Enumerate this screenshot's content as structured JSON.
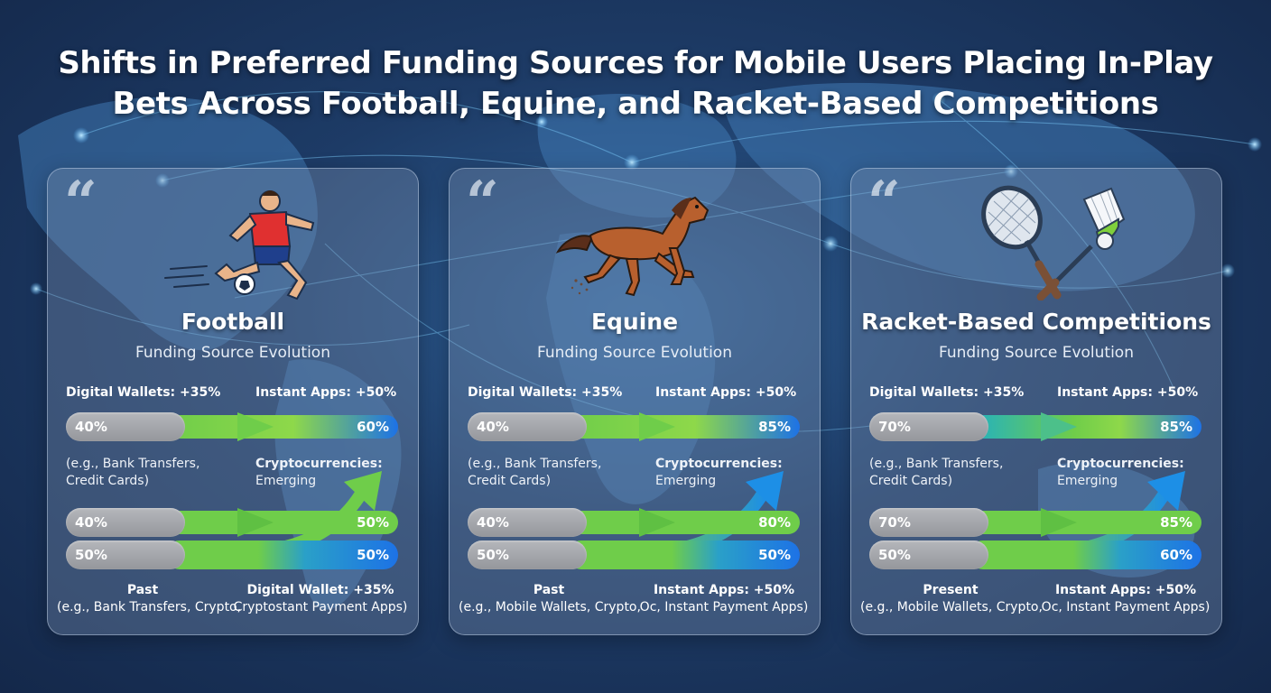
{
  "title_line1": "Shifts in Preferred Funding Sources for Mobile Users Placing In-Play",
  "title_line2": "Bets Across Football, Equine, and Racket-Based Competitions",
  "colors": {
    "grey": "#a4a6aa",
    "green": "#6fcd4a",
    "blue": "#1d72e6",
    "teal": "#21b0c4"
  },
  "cards": [
    {
      "icon": "soccer-player-icon",
      "title": "Football",
      "subtitle": "Funding Source Evolution",
      "label_left": "Digital Wallets: +35%",
      "label_right": "Instant Apps: +50%",
      "bar1": {
        "left": "40%",
        "right": "60%"
      },
      "note_left_1": "(e.g., Bank Transfers,",
      "note_left_2": "Credit Cards)",
      "note_right_1": "Cryptocurrencies:",
      "note_right_2": "Emerging",
      "bar2": {
        "left": "40%",
        "right": "50%"
      },
      "bar3": {
        "left": "50%",
        "right": "50%"
      },
      "foot_left_1": "Past",
      "foot_left_2": "(e.g., Bank Transfers, Crypto,",
      "foot_right_1": "Digital Wallet: +35%",
      "foot_right_2": "Cryptostant Payment Apps)"
    },
    {
      "icon": "horse-icon",
      "title": "Equine",
      "subtitle": "Funding Source Evolution",
      "label_left": "Digital Wallets: +35%",
      "label_right": "Instant Apps: +50%",
      "bar1": {
        "left": "40%",
        "right": "85%"
      },
      "note_left_1": "(e.g., Bank Transfers,",
      "note_left_2": "Credit Cards)",
      "note_right_1": "Cryptocurrencies:",
      "note_right_2": "Emerging",
      "bar2": {
        "left": "40%",
        "right": "80%"
      },
      "bar3": {
        "left": "50%",
        "right": "50%"
      },
      "foot_left_1": "Past",
      "foot_left_2": "(e.g., Mobile Wallets, Crypto,",
      "foot_right_1": "Instant Apps: +50%",
      "foot_right_2": "Oc, Instant Payment Apps)"
    },
    {
      "icon": "racket-shuttlecock-icon",
      "title": "Racket-Based Competitions",
      "subtitle": "Funding Source Evolution",
      "label_left": "Digital Wallets: +35%",
      "label_right": "Instant Apps: +50%",
      "bar1": {
        "left": "70%",
        "right": "85%"
      },
      "note_left_1": "(e.g., Bank Transfers,",
      "note_left_2": "Credit Cards)",
      "note_right_1": "Cryptocurrencies:",
      "note_right_2": "Emerging",
      "bar2": {
        "left": "70%",
        "right": "85%"
      },
      "bar3": {
        "left": "50%",
        "right": "60%"
      },
      "foot_left_1": "Present",
      "foot_left_2": "(e.g., Mobile Wallets, Crypto,",
      "foot_right_1": "Instant Apps: +50%",
      "foot_right_2": "Oc, Instant Payment Apps)"
    }
  ]
}
